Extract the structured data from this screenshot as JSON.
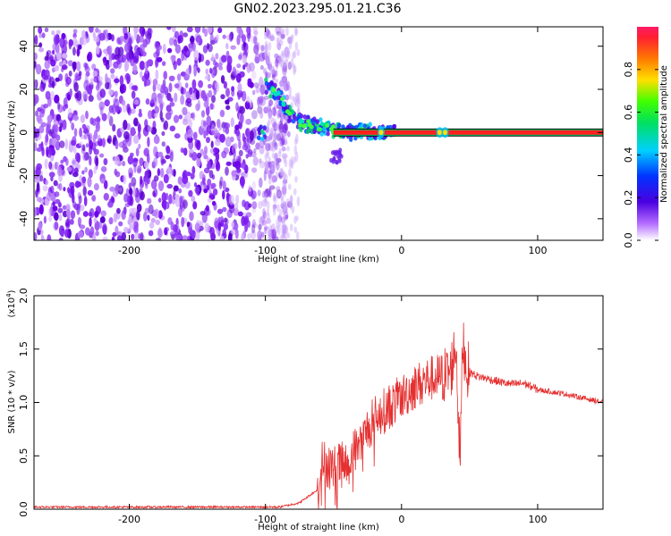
{
  "title": "GN02.2023.295.01.21.C36",
  "chart_data": [
    {
      "type": "heatmap",
      "xlabel": "Height of straight line (km)",
      "ylabel": "Frequency (Hz)",
      "xlim": [
        -270,
        148
      ],
      "ylim": [
        -50,
        49
      ],
      "x_ticks": [
        -200,
        -100,
        0,
        100
      ],
      "y_ticks": [
        -40,
        -20,
        0,
        20,
        40
      ],
      "colorbar": {
        "label": "Normalized spectral amplitude",
        "range": [
          0.0,
          1.0
        ],
        "ticks": [
          0.0,
          0.2,
          0.4,
          0.6,
          0.8
        ]
      },
      "description_points": [
        {
          "x": -100,
          "y": 22
        },
        {
          "x": -90,
          "y": 17
        },
        {
          "x": -80,
          "y": 6
        },
        {
          "x": -70,
          "y": 4
        },
        {
          "x": -55,
          "y": 2
        },
        {
          "x": -40,
          "y": 0
        },
        {
          "x": -15,
          "y": 1
        },
        {
          "x": 0,
          "y": 0
        },
        {
          "x": 30,
          "y": 0
        },
        {
          "x": 148,
          "y": 0
        }
      ],
      "line_frequency": 0
    },
    {
      "type": "line",
      "xlabel": "Height of straight line (km)",
      "ylabel": "SNR (10 * v/v)",
      "multiplier": "(x10",
      "multiplier_exp": "4",
      "xlim": [
        -270,
        148
      ],
      "ylim": [
        0,
        2.0
      ],
      "x_ticks": [
        -200,
        -100,
        0,
        100
      ],
      "y_ticks": [
        "0.0",
        "0.5",
        "1.0",
        "1.5",
        "2.0"
      ],
      "color": "#e53030",
      "series": [
        {
          "x": [
            -270,
            -200,
            -120,
            -90,
            -75,
            -62,
            -58,
            -50,
            -45,
            -40,
            -35,
            -30,
            -25,
            -20,
            -15,
            -10,
            -5,
            0,
            10,
            20,
            30,
            36,
            40,
            43,
            45,
            48,
            55,
            70,
            80,
            90,
            95,
            100,
            120,
            148
          ],
          "values": [
            0.02,
            0.02,
            0.02,
            0.02,
            0.06,
            0.18,
            0.45,
            0.38,
            0.42,
            0.4,
            0.55,
            0.6,
            0.75,
            0.85,
            0.9,
            0.95,
            1.0,
            1.05,
            1.15,
            1.22,
            1.25,
            1.28,
            1.55,
            0.45,
            1.6,
            1.3,
            1.25,
            1.2,
            1.17,
            1.18,
            1.15,
            1.12,
            1.08,
            1.0
          ]
        }
      ]
    }
  ]
}
